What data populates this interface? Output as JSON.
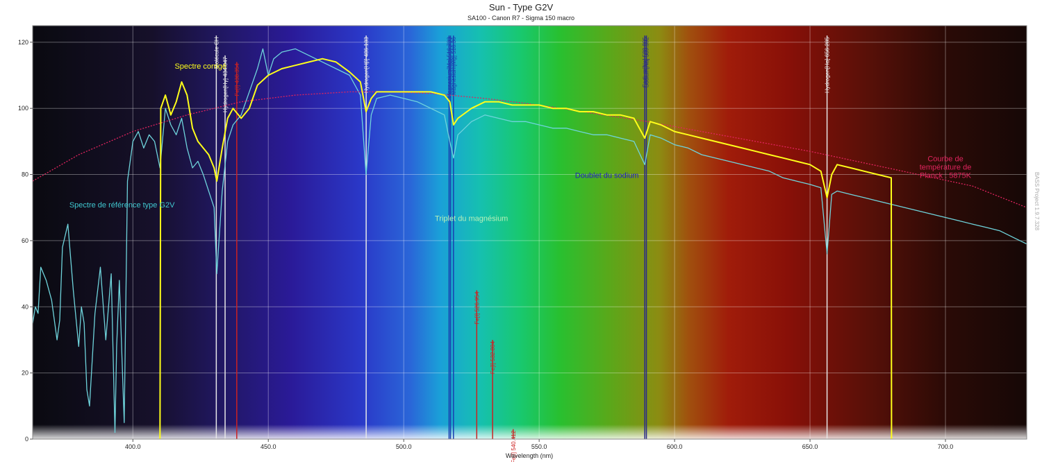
{
  "chart_data": {
    "type": "line",
    "title": "Sun - Type G2V",
    "subtitle": "SA100 - Canon R7 - Sigma 150 macro",
    "xlabel": "Wavelength (nm)",
    "ylabel": "",
    "xlim": [
      363,
      730
    ],
    "ylim": [
      0,
      125
    ],
    "x_ticks": [
      400,
      450,
      500,
      550,
      600,
      650,
      700
    ],
    "x_tick_labels": [
      "400.0",
      "450.0",
      "500.0",
      "550.0",
      "600.0",
      "650.0",
      "700.0"
    ],
    "y_ticks": [
      0,
      20,
      40,
      60,
      80,
      100,
      120
    ],
    "y_tick_labels": [
      "0",
      "20",
      "40",
      "60",
      "80",
      "100",
      "120"
    ],
    "grid": true,
    "colors": {
      "corrected": "#ffff1a",
      "reference": "#6fd4dc",
      "planck": "#e0245e",
      "white_line": "#e8e8e8",
      "fe_line": "#cc2222",
      "mg_line": "#1a3fb0",
      "na_line": "#2a2a8a"
    },
    "series": [
      {
        "name": "Spectre corrigé",
        "color": "#ffff1a",
        "x": [
          410,
          410.3,
          412,
          414,
          416,
          418,
          420,
          422,
          424,
          426,
          428,
          430,
          431,
          433,
          435,
          437,
          440,
          443,
          446,
          450,
          455,
          460,
          465,
          470,
          475,
          480,
          484,
          486.1,
          488,
          490,
          495,
          500,
          505,
          510,
          515,
          517,
          518.4,
          520,
          525,
          530,
          535,
          540,
          545,
          550,
          555,
          560,
          565,
          570,
          575,
          580,
          585,
          589,
          591,
          595,
          600,
          605,
          610,
          615,
          620,
          625,
          630,
          635,
          640,
          645,
          650,
          654,
          656.3,
          658,
          660,
          665,
          670,
          675,
          680,
          680.1
        ],
        "y": [
          0,
          100,
          104,
          98,
          102,
          108,
          104,
          94,
          90,
          88,
          86,
          82,
          78,
          88,
          97,
          100,
          97,
          100,
          107,
          110,
          112,
          113,
          114,
          115,
          114,
          111,
          108,
          99,
          103,
          105,
          105,
          105,
          105,
          105,
          104,
          102,
          95,
          97,
          100,
          102,
          102,
          101,
          101,
          101,
          100,
          100,
          99,
          99,
          98,
          98,
          97,
          91,
          96,
          95,
          93,
          92,
          91,
          90,
          89,
          88,
          87,
          86,
          85,
          84,
          83,
          81,
          73,
          80,
          83,
          82,
          81,
          80,
          79,
          0
        ]
      },
      {
        "name": "Spectre de référence type G2V",
        "color": "#6fd4dc",
        "x": [
          363,
          364,
          365,
          366,
          368,
          370,
          372,
          373,
          374,
          376,
          378,
          380,
          381,
          382,
          383,
          384,
          386,
          388,
          390,
          392,
          393.4,
          394,
          395,
          396.8,
          398,
          400,
          402,
          404,
          406,
          408,
          410,
          412,
          414,
          416,
          418,
          420,
          422,
          424,
          426,
          428,
          430,
          431,
          433,
          435,
          437,
          440,
          443,
          446,
          448,
          450,
          452,
          455,
          460,
          465,
          470,
          475,
          480,
          484,
          486.1,
          488,
          490,
          495,
          500,
          505,
          510,
          515,
          517,
          518.4,
          520,
          525,
          530,
          535,
          540,
          545,
          550,
          555,
          560,
          565,
          570,
          575,
          580,
          585,
          589,
          591,
          595,
          600,
          605,
          610,
          615,
          620,
          625,
          630,
          635,
          640,
          645,
          650,
          654,
          656.3,
          658,
          660,
          665,
          670,
          675,
          680,
          685,
          690,
          695,
          700,
          705,
          710,
          715,
          720,
          725,
          730
        ],
        "y": [
          35,
          40,
          38,
          52,
          48,
          42,
          30,
          36,
          58,
          65,
          45,
          28,
          40,
          35,
          15,
          10,
          38,
          52,
          30,
          50,
          2,
          28,
          48,
          5,
          78,
          90,
          93,
          88,
          92,
          90,
          82,
          100,
          95,
          92,
          97,
          88,
          82,
          84,
          80,
          75,
          70,
          50,
          75,
          90,
          95,
          98,
          105,
          112,
          118,
          110,
          115,
          117,
          118,
          116,
          114,
          112,
          110,
          104,
          80,
          98,
          103,
          104,
          103,
          102,
          100,
          98,
          90,
          85,
          92,
          96,
          98,
          97,
          96,
          96,
          95,
          94,
          94,
          93,
          92,
          92,
          91,
          90,
          83,
          92,
          91,
          89,
          88,
          86,
          85,
          84,
          83,
          82,
          81,
          79,
          78,
          77,
          76,
          56,
          74,
          75,
          74,
          73,
          72,
          71,
          70,
          69,
          68,
          67,
          66,
          65,
          64,
          63,
          61,
          59
        ]
      },
      {
        "name": "Courbe de température de Planck : 5875K",
        "color": "#e0245e",
        "x": [
          363,
          380,
          400,
          420,
          440,
          460,
          480,
          495,
          510,
          530,
          550,
          570,
          590,
          610,
          630,
          650,
          670,
          690,
          710,
          730
        ],
        "y": [
          78,
          86,
          93,
          98,
          102,
          104,
          105,
          105,
          104.5,
          103,
          101,
          98.5,
          96,
          93,
          90,
          87,
          83.5,
          80,
          76.5,
          70
        ]
      }
    ],
    "spectral_lines": [
      {
        "wavelength": 430.8,
        "label": "Molécule CH",
        "kind": "white",
        "height": 122
      },
      {
        "wavelength": 434.047,
        "label": "Hydrogen[Hγ] 434.047",
        "kind": "white",
        "height": 116
      },
      {
        "wavelength": 438.354,
        "label": "Fe[I] 438.354",
        "kind": "fe",
        "height": 114
      },
      {
        "wavelength": 486.133,
        "label": "Hydrogen[Hβ] 486.133",
        "kind": "white",
        "height": 122
      },
      {
        "wavelength": 516.733,
        "label": "Magnesium[Mg] 516.733",
        "kind": "mg",
        "height": 122
      },
      {
        "wavelength": 517.27,
        "label": "Magnesium[Mg] 517.27",
        "kind": "mg",
        "height": 122
      },
      {
        "wavelength": 518.36,
        "label": "Magnesium[Mg] 518.36",
        "kind": "mg",
        "height": 122
      },
      {
        "wavelength": 526.954,
        "label": "Fe[I] 526.954",
        "kind": "fe",
        "height": 45
      },
      {
        "wavelength": 532.804,
        "label": "Fe[I] 532.804",
        "kind": "fe",
        "height": 30
      },
      {
        "wavelength": 540.412,
        "label": "Fe[I] 540.412",
        "kind": "fe",
        "height": 3
      },
      {
        "wavelength": 588.995,
        "label": "Sodium[Na] 588.995",
        "kind": "na",
        "height": 122
      },
      {
        "wavelength": 589.592,
        "label": "Sodium[Na] 589.592",
        "kind": "na",
        "height": 122
      },
      {
        "wavelength": 656.285,
        "label": "Hydrogen[Hα] 656.285",
        "kind": "white",
        "height": 122
      }
    ],
    "annotations": [
      {
        "text": "Spectre corrigé",
        "x": 425,
        "y": 112,
        "color": "#ffff1a"
      },
      {
        "text": "Spectre de référence type G2V",
        "x": 396,
        "y": 70,
        "color": "#40c8d0"
      },
      {
        "text": "Triplet du magnésium",
        "x": 525,
        "y": 66,
        "color": "#b8f0b8"
      },
      {
        "text": "Doublet du sodium",
        "x": 575,
        "y": 79,
        "color": "#2020c0"
      },
      {
        "text": "Courbe de",
        "x": 700,
        "y": 84,
        "color": "#e0245e"
      },
      {
        "text": "température de",
        "x": 700,
        "y": 81.5,
        "color": "#e0245e"
      },
      {
        "text": "Planck : 5875K",
        "x": 700,
        "y": 79,
        "color": "#e0245e"
      }
    ],
    "watermark": "BASS Project 1.9.7.328"
  }
}
